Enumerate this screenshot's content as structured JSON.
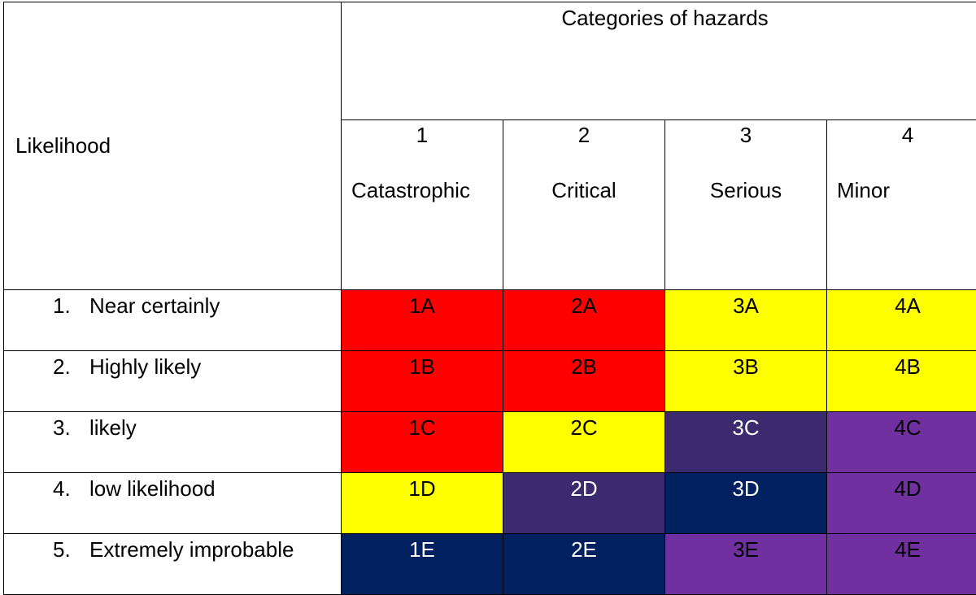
{
  "table": {
    "likelihood_header": "Likelihood",
    "categories_title": "Categories of hazards",
    "categories": [
      {
        "number": "1",
        "name": "Catastrophic"
      },
      {
        "number": "2",
        "name": "Critical"
      },
      {
        "number": "3",
        "name": "Serious"
      },
      {
        "number": "4",
        "name": "Minor"
      }
    ],
    "rows": [
      {
        "number": "1.",
        "label": "Near certainly",
        "cells": [
          {
            "code": "1A",
            "color": "#ff0000"
          },
          {
            "code": "2A",
            "color": "#ff0000"
          },
          {
            "code": "3A",
            "color": "#ffff00"
          },
          {
            "code": "4A",
            "color": "#ffff00"
          }
        ]
      },
      {
        "number": "2.",
        "label": "Highly likely",
        "cells": [
          {
            "code": "1B",
            "color": "#ff0000"
          },
          {
            "code": "2B",
            "color": "#ff0000"
          },
          {
            "code": "3B",
            "color": "#ffff00"
          },
          {
            "code": "4B",
            "color": "#ffff00"
          }
        ]
      },
      {
        "number": "3.",
        "label": "likely",
        "cells": [
          {
            "code": "1C",
            "color": "#ff0000"
          },
          {
            "code": "2C",
            "color": "#ffff00"
          },
          {
            "code": "3C",
            "color": "#3b2a6e"
          },
          {
            "code": "4C",
            "color": "#7030a0"
          }
        ]
      },
      {
        "number": "4.",
        "label": "low likelihood",
        "cells": [
          {
            "code": "1D",
            "color": "#ffff00"
          },
          {
            "code": "2D",
            "color": "#3b2a6e"
          },
          {
            "code": "3D",
            "color": "#002060"
          },
          {
            "code": "4D",
            "color": "#7030a0"
          }
        ]
      },
      {
        "number": "5.",
        "label": "Extremely improbable",
        "cells": [
          {
            "code": "1E",
            "color": "#002060"
          },
          {
            "code": "2E",
            "color": "#002060"
          },
          {
            "code": "3E",
            "color": "#7030a0"
          },
          {
            "code": "4E",
            "color": "#7030a0"
          }
        ]
      }
    ]
  }
}
